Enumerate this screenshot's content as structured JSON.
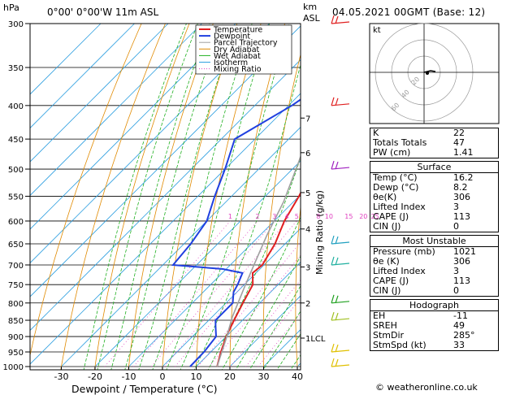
{
  "header": {
    "pressure_unit": "hPa",
    "location": "0°00'  0°00'W  11m  ASL",
    "height_unit_km": "km",
    "height_unit_asl": "ASL",
    "datetime": "04.05.2021  00GMT  (Base: 12)"
  },
  "chart_data": {
    "type": "line",
    "title": "",
    "xlabel": "Dewpoint / Temperature (°C)",
    "ylabel": "hPa",
    "right_axis_label": "Mixing Ratio (g/kg)",
    "xlim": [
      -35,
      40
    ],
    "ylim": [
      1000,
      300
    ],
    "x_ticks": [
      "-30",
      "-20",
      "-10",
      "0",
      "10",
      "20",
      "30",
      "40"
    ],
    "pressure_levels": [
      "300",
      "350",
      "400",
      "450",
      "500",
      "550",
      "600",
      "650",
      "700",
      "750",
      "800",
      "850",
      "900",
      "950",
      "1000"
    ],
    "km_ticks": [
      {
        "label": "7",
        "p": 418
      },
      {
        "label": "6",
        "p": 472
      },
      {
        "label": "5",
        "p": 543
      },
      {
        "label": "4",
        "p": 617
      },
      {
        "label": "3",
        "p": 705
      },
      {
        "label": "2",
        "p": 800
      },
      {
        "label": "1LCL",
        "p": 905
      }
    ],
    "mixing_ratio_labels": [
      "1",
      "2",
      "3",
      "4",
      "5",
      "8",
      "10",
      "15",
      "20",
      "25"
    ],
    "legend": [
      "Temperature",
      "Dewpoint",
      "Parcel Trajectory",
      "Dry Adiabat",
      "Wet Adiabat",
      "Isotherm",
      "Mixing Ratio"
    ],
    "grid": true,
    "series": [
      {
        "name": "Temperature",
        "color": "#e02020",
        "points": [
          [
            16.2,
            1000
          ],
          [
            13,
            950
          ],
          [
            10,
            900
          ],
          [
            7.5,
            850
          ],
          [
            5,
            800
          ],
          [
            2.5,
            750
          ],
          [
            -1,
            720
          ],
          [
            -0.5,
            700
          ],
          [
            -3,
            650
          ],
          [
            -7,
            600
          ],
          [
            -10,
            550
          ],
          [
            -14,
            500
          ],
          [
            -18,
            450
          ],
          [
            -24,
            400
          ],
          [
            -31,
            350
          ],
          [
            -40,
            300
          ]
        ]
      },
      {
        "name": "Dewpoint",
        "color": "#2040e0",
        "points": [
          [
            8.2,
            1000
          ],
          [
            8,
            950
          ],
          [
            7,
            900
          ],
          [
            4,
            870
          ],
          [
            2,
            850
          ],
          [
            2,
            800
          ],
          [
            -1,
            770
          ],
          [
            -2,
            750
          ],
          [
            -4,
            720
          ],
          [
            -11,
            710
          ],
          [
            -27,
            700
          ],
          [
            -28,
            650
          ],
          [
            -30,
            600
          ],
          [
            -35,
            550
          ],
          [
            -40,
            500
          ],
          [
            -46,
            450
          ],
          [
            -39,
            400
          ],
          [
            -37,
            380
          ],
          [
            -42,
            370
          ],
          [
            -38,
            360
          ],
          [
            -46,
            330
          ],
          [
            -55,
            300
          ]
        ]
      },
      {
        "name": "Parcel Trajectory",
        "color": "#a0a0a0",
        "points": [
          [
            16.2,
            1000
          ],
          [
            10.5,
            905
          ],
          [
            6,
            840
          ],
          [
            1,
            760
          ],
          [
            -3,
            700
          ],
          [
            -8,
            630
          ],
          [
            -13,
            560
          ],
          [
            -20,
            490
          ],
          [
            -27,
            430
          ],
          [
            -35,
            370
          ],
          [
            -46,
            300
          ]
        ]
      }
    ]
  },
  "hodograph": {
    "label": "kt",
    "rings": [
      "20",
      "40",
      "60"
    ]
  },
  "stats": {
    "main": [
      {
        "label": "K",
        "value": "22"
      },
      {
        "label": "Totals Totals",
        "value": "47"
      },
      {
        "label": "PW (cm)",
        "value": "1.41"
      }
    ],
    "surface": {
      "title": "Surface",
      "rows": [
        {
          "label": "Temp (°C)",
          "value": "16.2"
        },
        {
          "label": "Dewp (°C)",
          "value": "8.2"
        },
        {
          "label": "θe(K)",
          "value": "306"
        },
        {
          "label": "Lifted Index",
          "value": "3"
        },
        {
          "label": "CAPE (J)",
          "value": "113"
        },
        {
          "label": "CIN (J)",
          "value": "0"
        }
      ]
    },
    "most_unstable": {
      "title": "Most Unstable",
      "rows": [
        {
          "label": "Pressure (mb)",
          "value": "1021"
        },
        {
          "label": "θe (K)",
          "value": "306"
        },
        {
          "label": "Lifted Index",
          "value": "3"
        },
        {
          "label": "CAPE (J)",
          "value": "113"
        },
        {
          "label": "CIN (J)",
          "value": "0"
        }
      ]
    },
    "hodograph_box": {
      "title": "Hodograph",
      "rows": [
        {
          "label": "EH",
          "value": "-11"
        },
        {
          "label": "SREH",
          "value": "49"
        },
        {
          "label": "StmDir",
          "value": "285°"
        },
        {
          "label": "StmSpd (kt)",
          "value": "33"
        }
      ]
    }
  },
  "footer": "© weatheronline.co.uk",
  "colors": {
    "temperature": "#e02020",
    "dewpoint": "#2040e0",
    "parcel": "#a0a0a0",
    "dry_adiabat": "#e08a00",
    "wet_adiabat": "#20b020",
    "isotherm": "#30a0e0",
    "mixing_ratio": "#e040c0"
  }
}
